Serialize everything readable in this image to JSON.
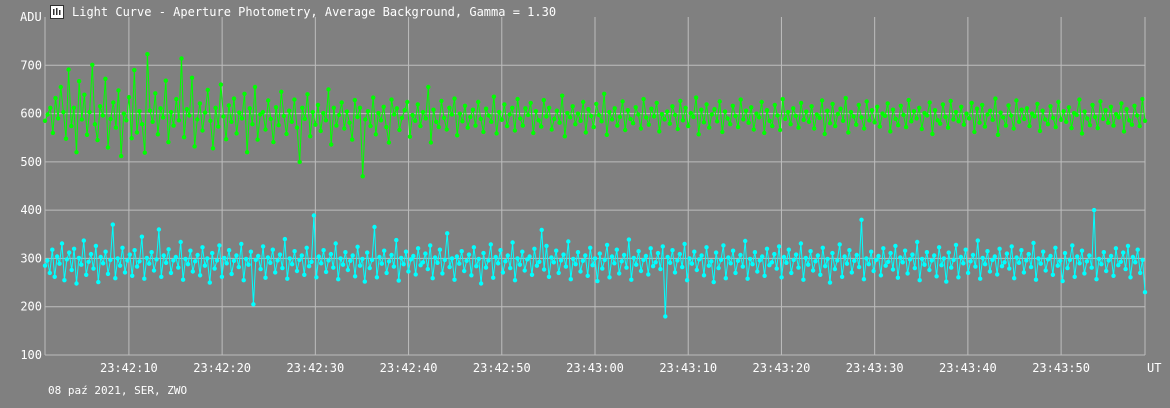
{
  "window": {
    "title": "Light Curve - Aperture Photometry, Average Background, Gamma = 1.30",
    "icon": "light-curve-app-icon"
  },
  "footer": {
    "caption": "08 paź 2021, SER, ZWO"
  },
  "colors": {
    "background": "#808080",
    "grid": "#bdbdbd",
    "series_green": "#00ff00",
    "series_cyan": "#00ffff"
  },
  "chart_data": {
    "type": "line",
    "title": "",
    "xlabel": "UT",
    "ylabel": "ADU",
    "grid": true,
    "legend": "none",
    "x_start": "23:42:01",
    "x_end": "23:43:59",
    "xlim": [
      "23:42:01",
      "23:43:59"
    ],
    "ylim": [
      100,
      800
    ],
    "yticks": [
      100,
      200,
      300,
      400,
      500,
      600,
      700
    ],
    "xticks": [
      "23:42:10",
      "23:42:20",
      "23:42:30",
      "23:42:40",
      "23:42:50",
      "23:43:00",
      "23:43:10",
      "23:43:20",
      "23:43:30",
      "23:43:40",
      "23:43:50"
    ],
    "markers": true,
    "series": [
      {
        "color": "#00ff00",
        "values": [
          585,
          598,
          612,
          560,
          632,
          590,
          655,
          603,
          548,
          691,
          574,
          612,
          520,
          667,
          588,
          639,
          556,
          603,
          701,
          578,
          545,
          615,
          596,
          672,
          530,
          589,
          623,
          571,
          648,
          512,
          600,
          586,
          634,
          549,
          690,
          561,
          605,
          578,
          519,
          723,
          606,
          583,
          642,
          557,
          611,
          592,
          668,
          541,
          603,
          575,
          630,
          586,
          714,
          551,
          609,
          596,
          674,
          532,
          588,
          621,
          565,
          602,
          649,
          585,
          528,
          612,
          573,
          660,
          594,
          547,
          617,
          583,
          631,
          559,
          602,
          590,
          641,
          520,
          611,
          578,
          655,
          546,
          598,
          603,
          567,
          627,
          589,
          541,
          613,
          576,
          645,
          595,
          558,
          606,
          583,
          629,
          571,
          500,
          612,
          589,
          640,
          553,
          603,
          577,
          618,
          564,
          601,
          586,
          650,
          536,
          612,
          575,
          597,
          623,
          569,
          604,
          581,
          546,
          628,
          593,
          612,
          470,
          588,
          605,
          574,
          633,
          557,
          601,
          586,
          614,
          572,
          540,
          629,
          598,
          611,
          566,
          591,
          607,
          624,
          552,
          597,
          585,
          619,
          574,
          603,
          590,
          655,
          540,
          608,
          583,
          572,
          626,
          591,
          567,
          612,
          598,
          631,
          555,
          600,
          584,
          616,
          571,
          593,
          608,
          575,
          624,
          589,
          562,
          610,
          596,
          583,
          635,
          559,
          603,
          587,
          619,
          574,
          598,
          612,
          565,
          630,
          590,
          575,
          611,
          597,
          622,
          560,
          605,
          586,
          573,
          628,
          594,
          612,
          567,
          589,
          606,
          581,
          637,
          553,
          601,
          592,
          615,
          578,
          600,
          585,
          624,
          561,
          609,
          595,
          572,
          620,
          597,
          584,
          641,
          556,
          603,
          588,
          611,
          575,
          593,
          625,
          566,
          607,
          589,
          580,
          613,
          598,
          569,
          630,
          592,
          577,
          610,
          594,
          622,
          563,
          599,
          588,
          604,
          579,
          615,
          597,
          568,
          626,
          586,
          612,
          574,
          601,
          593,
          633,
          557,
          608,
          582,
          619,
          571,
          598,
          609,
          584,
          625,
          562,
          604,
          590,
          578,
          616,
          595,
          572,
          629,
          588,
          606,
          581,
          613,
          567,
          600,
          592,
          624,
          560,
          607,
          585,
          574,
          618,
          596,
          566,
          630,
          589,
          603,
          578,
          611,
          595,
          571,
          622,
          587,
          604,
          583,
          615,
          569,
          598,
          591,
          627,
          558,
          606,
          580,
          620,
          574,
          599,
          610,
          585,
          632,
          561,
          603,
          594,
          577,
          618,
          592,
          569,
          625,
          586,
          607,
          582,
          614,
          573,
          600,
          595,
          621,
          563,
          608,
          589,
          576,
          616,
          597,
          572,
          628,
          584,
          605,
          590,
          612,
          568,
          601,
          596,
          623,
          558,
          607,
          586,
          579,
          619,
          593,
          571,
          626,
          588,
          603,
          584,
          614,
          577,
          600,
          590,
          622,
          562,
          610,
          581,
          618,
          573,
          598,
          606,
          587,
          631,
          556,
          602,
          592,
          575,
          617,
          596,
          569,
          627,
          583,
          608,
          589,
          611,
          574,
          600,
          594,
          620,
          564,
          606,
          588,
          578,
          615,
          591,
          572,
          624,
          587,
          605,
          583,
          613,
          570,
          601,
          597,
          629,
          559,
          604,
          590,
          576,
          618,
          593,
          570,
          625,
          589,
          607,
          581,
          614,
          575,
          599,
          592,
          621,
          563,
          609,
          586,
          577,
          616,
          596,
          574,
          630,
          585
        ],
        "name": ""
      },
      {
        "color": "#00ffff",
        "values": [
          285,
          296,
          270,
          318,
          262,
          304,
          289,
          331,
          255,
          298,
          312,
          276,
          320,
          248,
          301,
          287,
          337,
          266,
          293,
          309,
          279,
          326,
          251,
          303,
          290,
          314,
          268,
          297,
          370,
          259,
          300,
          285,
          322,
          271,
          296,
          308,
          264,
          317,
          283,
          294,
          345,
          258,
          301,
          289,
          313,
          275,
          298,
          360,
          262,
          306,
          291,
          319,
          270,
          296,
          303,
          281,
          334,
          256,
          299,
          288,
          316,
          273,
          294,
          307,
          265,
          323,
          285,
          300,
          250,
          311,
          279,
          296,
          327,
          262,
          301,
          290,
          317,
          268,
          295,
          306,
          282,
          330,
          255,
          299,
          287,
          314,
          205,
          297,
          305,
          278,
          325,
          260,
          302,
          291,
          318,
          271,
          296,
          308,
          280,
          340,
          258,
          300,
          288,
          315,
          274,
          297,
          306,
          266,
          322,
          284,
          293,
          389,
          261,
          304,
          290,
          317,
          272,
          296,
          309,
          281,
          331,
          257,
          300,
          287,
          313,
          276,
          295,
          306,
          263,
          324,
          285,
          299,
          252,
          312,
          280,
          297,
          365,
          261,
          303,
          289,
          316,
          270,
          294,
          307,
          283,
          338,
          254,
          301,
          288,
          314,
          273,
          298,
          305,
          267,
          321,
          286,
          292,
          310,
          278,
          327,
          259,
          302,
          291,
          318,
          269,
          297,
          352,
          282,
          300,
          256,
          304,
          289,
          315,
          274,
          295,
          308,
          265,
          323,
          284,
          299,
          248,
          311,
          281,
          296,
          329,
          260,
          303,
          290,
          317,
          271,
          294,
          306,
          280,
          333,
          255,
          300,
          287,
          314,
          275,
          298,
          304,
          266,
          320,
          285,
          293,
          359,
          277,
          326,
          262,
          302,
          292,
          316,
          270,
          296,
          308,
          283,
          335,
          257,
          299,
          288,
          313,
          273,
          295,
          306,
          264,
          322,
          286,
          300,
          253,
          310,
          279,
          297,
          328,
          261,
          304,
          290,
          318,
          269,
          294,
          307,
          281,
          339,
          256,
          301,
          287,
          315,
          274,
          297,
          305,
          267,
          321,
          284,
          292,
          311,
          278,
          325,
          180,
          303,
          291,
          317,
          271,
          296,
          309,
          282,
          330,
          255,
          300,
          289,
          314,
          276,
          298,
          306,
          265,
          323,
          285,
          294,
          251,
          312,
          280,
          297,
          327,
          259,
          302,
          290,
          316,
          270,
          295,
          307,
          283,
          336,
          258,
          299,
          288,
          313,
          273,
          296,
          304,
          264,
          320,
          286,
          292,
          309,
          279,
          325,
          261,
          303,
          291,
          318,
          270,
          297,
          308,
          281,
          331,
          256,
          301,
          287,
          315,
          275,
          294,
          306,
          266,
          322,
          284,
          299,
          250,
          311,
          278,
          296,
          329,
          262,
          304,
          289,
          317,
          271,
          295,
          307,
          282,
          380,
          257,
          300,
          288,
          314,
          274,
          297,
          305,
          265,
          321,
          285,
          293,
          311,
          277,
          326,
          260,
          302,
          292,
          316,
          269,
          298,
          308,
          280,
          334,
          255,
          299,
          287,
          313,
          276,
          296,
          306,
          263,
          323,
          286,
          300,
          252,
          312,
          281,
          297,
          328,
          261,
          303,
          290,
          318,
          270,
          294,
          307,
          283,
          337,
          258,
          301,
          288,
          315,
          273,
          297,
          304,
          267,
          320,
          284,
          292,
          310,
          279,
          325,
          259,
          302,
          291,
          317,
          271,
          296,
          309,
          282,
          332,
          256,
          300,
          289,
          314,
          275,
          298,
          305,
          266,
          322,
          285,
          295,
          253,
          311,
          280,
          297,
          327,
          262,
          304,
          290,
          316,
          269,
          294,
          306,
          281,
          400,
          257,
          299,
          288,
          313,
          274,
          296,
          305,
          264,
          321,
          286,
          293,
          312,
          278,
          326,
          261,
          303,
          292,
          318,
          270,
          297,
          230
        ],
        "name": ""
      }
    ]
  }
}
